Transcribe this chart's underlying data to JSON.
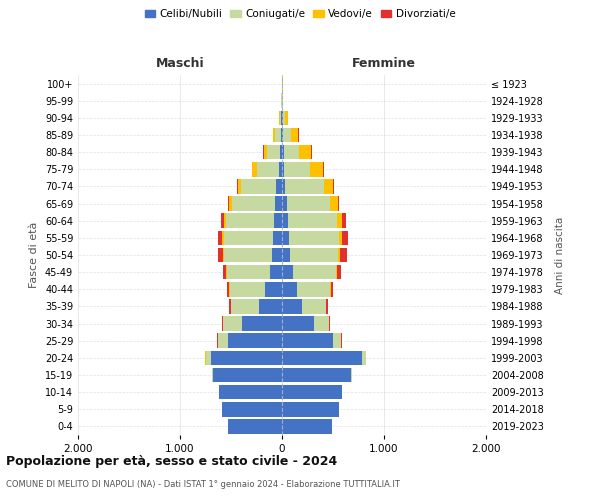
{
  "age_groups": [
    "0-4",
    "5-9",
    "10-14",
    "15-19",
    "20-24",
    "25-29",
    "30-34",
    "35-39",
    "40-44",
    "45-49",
    "50-54",
    "55-59",
    "60-64",
    "65-69",
    "70-74",
    "75-79",
    "80-84",
    "85-89",
    "90-94",
    "95-99",
    "100+"
  ],
  "birth_years": [
    "2019-2023",
    "2014-2018",
    "2009-2013",
    "2004-2008",
    "1999-2003",
    "1994-1998",
    "1989-1993",
    "1984-1988",
    "1979-1983",
    "1974-1978",
    "1969-1973",
    "1964-1968",
    "1959-1963",
    "1954-1958",
    "1949-1953",
    "1944-1948",
    "1939-1943",
    "1934-1938",
    "1929-1933",
    "1924-1928",
    "≤ 1923"
  ],
  "male": {
    "celibi": [
      530,
      590,
      620,
      680,
      700,
      530,
      390,
      230,
      170,
      120,
      100,
      90,
      80,
      70,
      55,
      30,
      20,
      10,
      5,
      2,
      2
    ],
    "coniugati": [
      1,
      1,
      2,
      10,
      50,
      100,
      190,
      270,
      340,
      420,
      470,
      480,
      470,
      420,
      350,
      220,
      130,
      60,
      15,
      5,
      2
    ],
    "vedovi": [
      0,
      0,
      0,
      0,
      5,
      2,
      2,
      3,
      5,
      8,
      12,
      15,
      20,
      25,
      30,
      40,
      30,
      15,
      5,
      1,
      0
    ],
    "divorziati": [
      0,
      0,
      0,
      0,
      2,
      5,
      10,
      15,
      20,
      30,
      50,
      40,
      25,
      15,
      10,
      5,
      5,
      2,
      1,
      0,
      0
    ]
  },
  "female": {
    "nubili": [
      490,
      560,
      590,
      680,
      780,
      500,
      310,
      200,
      150,
      110,
      80,
      70,
      60,
      45,
      30,
      20,
      15,
      10,
      5,
      2,
      2
    ],
    "coniugate": [
      1,
      1,
      2,
      8,
      40,
      80,
      150,
      230,
      320,
      420,
      470,
      490,
      480,
      430,
      380,
      250,
      150,
      80,
      20,
      5,
      2
    ],
    "vedove": [
      0,
      0,
      0,
      0,
      2,
      2,
      3,
      5,
      8,
      12,
      20,
      30,
      50,
      70,
      90,
      130,
      120,
      70,
      30,
      5,
      1
    ],
    "divorziate": [
      0,
      0,
      0,
      0,
      2,
      5,
      10,
      15,
      20,
      35,
      70,
      60,
      35,
      15,
      10,
      8,
      5,
      2,
      1,
      0,
      0
    ]
  },
  "colors": {
    "celibi": "#4472c4",
    "coniugati": "#c5d9a0",
    "vedovi": "#ffc000",
    "divorziati": "#e03030"
  },
  "legend_labels": [
    "Celibi/Nubili",
    "Coniugati/e",
    "Vedovi/e",
    "Divorziati/e"
  ],
  "title": "Popolazione per età, sesso e stato civile - 2024",
  "subtitle": "COMUNE DI MELITO DI NAPOLI (NA) - Dati ISTAT 1° gennaio 2024 - Elaborazione TUTTITALIA.IT",
  "xlabel_left": "Maschi",
  "xlabel_right": "Femmine",
  "ylabel_left": "Fasce di età",
  "ylabel_right": "Anni di nascita",
  "xlim": 2000,
  "xtick_labels": [
    "2.000",
    "1.000",
    "0",
    "1.000",
    "2.000"
  ],
  "xtick_values": [
    -2000,
    -1000,
    0,
    1000,
    2000
  ]
}
